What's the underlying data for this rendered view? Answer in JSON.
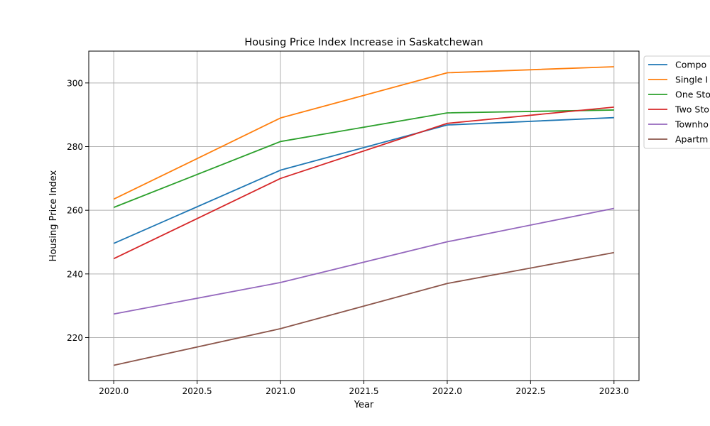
{
  "chart_data": {
    "type": "line",
    "title": "Housing Price Index Increase in Saskatchewan",
    "xlabel": "Year",
    "ylabel": "Housing Price Index",
    "x": [
      2020,
      2021,
      2022,
      2023
    ],
    "xlim": [
      2019.85,
      2023.15
    ],
    "ylim": [
      206.5,
      310
    ],
    "x_ticks": [
      2020.0,
      2020.5,
      2021.0,
      2021.5,
      2022.0,
      2022.5,
      2023.0
    ],
    "x_tick_labels": [
      "2020.0",
      "2020.5",
      "2021.0",
      "2021.5",
      "2022.0",
      "2022.5",
      "2023.0"
    ],
    "y_ticks": [
      220,
      240,
      260,
      280,
      300
    ],
    "y_tick_labels": [
      "220",
      "240",
      "260",
      "280",
      "300"
    ],
    "grid": true,
    "legend_position": "outside-top-right",
    "series": [
      {
        "name": "Composite",
        "legend_label": "Compo",
        "color": "#1f77b4",
        "values": [
          249.6,
          272.6,
          286.8,
          289.1
        ]
      },
      {
        "name": "Single Family",
        "legend_label": "Single I",
        "color": "#ff7f0e",
        "values": [
          263.5,
          289.0,
          303.2,
          305.1
        ]
      },
      {
        "name": "One Storey",
        "legend_label": "One Sto",
        "color": "#2ca02c",
        "values": [
          260.9,
          281.6,
          290.6,
          291.5
        ]
      },
      {
        "name": "Two Storey",
        "legend_label": "Two Sto",
        "color": "#d62728",
        "values": [
          244.8,
          270.0,
          287.3,
          292.4
        ]
      },
      {
        "name": "Townhouse",
        "legend_label": "Townho",
        "color": "#9467bd",
        "values": [
          227.4,
          237.3,
          250.1,
          260.6
        ]
      },
      {
        "name": "Apartment",
        "legend_label": "Apartm",
        "color": "#8c564b",
        "values": [
          211.3,
          222.8,
          237.0,
          246.7
        ]
      }
    ]
  }
}
